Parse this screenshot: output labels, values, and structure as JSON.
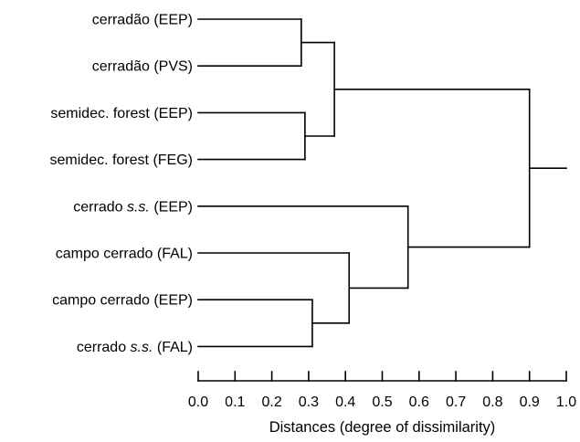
{
  "dendrogram": {
    "leaves": [
      {
        "main": "cerradão (EEP)"
      },
      {
        "main": "cerradão (PVS)"
      },
      {
        "main": "semidec. forest (EEP)"
      },
      {
        "main": "semidec. forest (FEG)"
      },
      {
        "main": "cerrado ",
        "italic": "s.s.",
        "suffix": " (EEP)"
      },
      {
        "main": "campo cerrado (FAL)"
      },
      {
        "main": "campo cerrado (EEP)"
      },
      {
        "main": "cerrado ",
        "italic": "s.s.",
        "suffix": " (FAL)"
      }
    ],
    "merges": [
      {
        "id": "m1",
        "a": "L0",
        "b": "L1",
        "height": 0.28
      },
      {
        "id": "m2",
        "a": "L2",
        "b": "L3",
        "height": 0.29
      },
      {
        "id": "m3",
        "a": "L6",
        "b": "L7",
        "height": 0.31
      },
      {
        "id": "m4",
        "a": "m1",
        "b": "m2",
        "height": 0.37
      },
      {
        "id": "m5",
        "a": "L5",
        "b": "m3",
        "height": 0.41
      },
      {
        "id": "m6",
        "a": "L4",
        "b": "m5",
        "height": 0.57
      },
      {
        "id": "m7",
        "a": "m4",
        "b": "m6",
        "height": 0.9
      }
    ],
    "root_tail_to": 1.0
  },
  "axis": {
    "min": 0.0,
    "max": 1.0,
    "ticks": [
      "0.0",
      "0.1",
      "0.2",
      "0.3",
      "0.4",
      "0.5",
      "0.6",
      "0.7",
      "0.8",
      "0.9",
      "1.0"
    ],
    "title": "Distances (degree of dissimilarity)"
  }
}
